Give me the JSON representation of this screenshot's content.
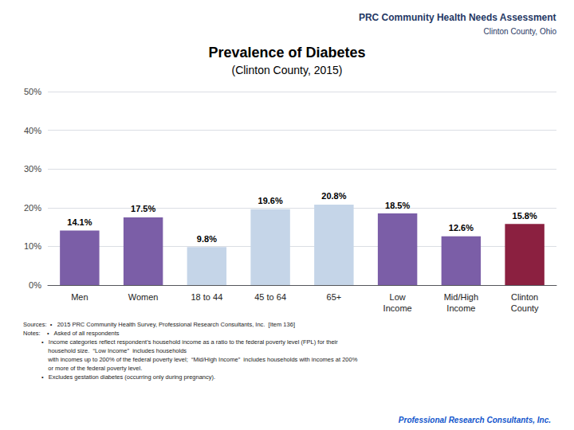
{
  "chart_data": {
    "type": "bar",
    "title": "Prevalence of Diabetes",
    "subtitle": "(Clinton County, 2015)",
    "categories": [
      "Men",
      "Women",
      "18 to 44",
      "45 to 64",
      "65+",
      "Low\nIncome",
      "Mid/High\nIncome",
      "Clinton\nCounty"
    ],
    "values": [
      14.1,
      17.5,
      9.8,
      19.6,
      20.8,
      18.5,
      12.6,
      15.8
    ],
    "value_labels": [
      "14.1%",
      "17.5%",
      "9.8%",
      "19.6%",
      "20.8%",
      "18.5%",
      "12.6%",
      "15.8%"
    ],
    "data_labels": true,
    "colors": [
      "#7B5EA7",
      "#7B5EA7",
      "#C5D5E8",
      "#C5D5E8",
      "#C5D5E8",
      "#7B5EA7",
      "#7B5EA7",
      "#8B2040"
    ],
    "ylim": [
      0,
      50
    ],
    "yticks": [
      {
        "value": 0,
        "label": "0%"
      },
      {
        "value": 10,
        "label": "10%"
      },
      {
        "value": 20,
        "label": "20%"
      },
      {
        "value": 30,
        "label": "30%"
      },
      {
        "value": 40,
        "label": "40%"
      },
      {
        "value": 50,
        "label": "50%"
      }
    ],
    "grid": true,
    "annotations": [
      "PRC Community Health Needs Assessment",
      "Clinton County, Ohio",
      "Sources:  •   2015 PRC Community Health Survey, Professional Research Consultants, Inc.  [Item 136]",
      "Notes:    •   Asked of all respondents\n           •   Income categories reflect respondent’s household income as a ratio to the federal poverty level (FPL) for their\n               household size.  “Low Income”  includes households\n               with incomes up to 200% of the federal poverty level;  “Mid/High Income”  includes households with incomes at 200%\n               or more of the federal poverty level.\n           •   Excludes gestation diabetes (occurring only during pregnancy).",
      "Professional Research Consultants, Inc."
    ]
  }
}
